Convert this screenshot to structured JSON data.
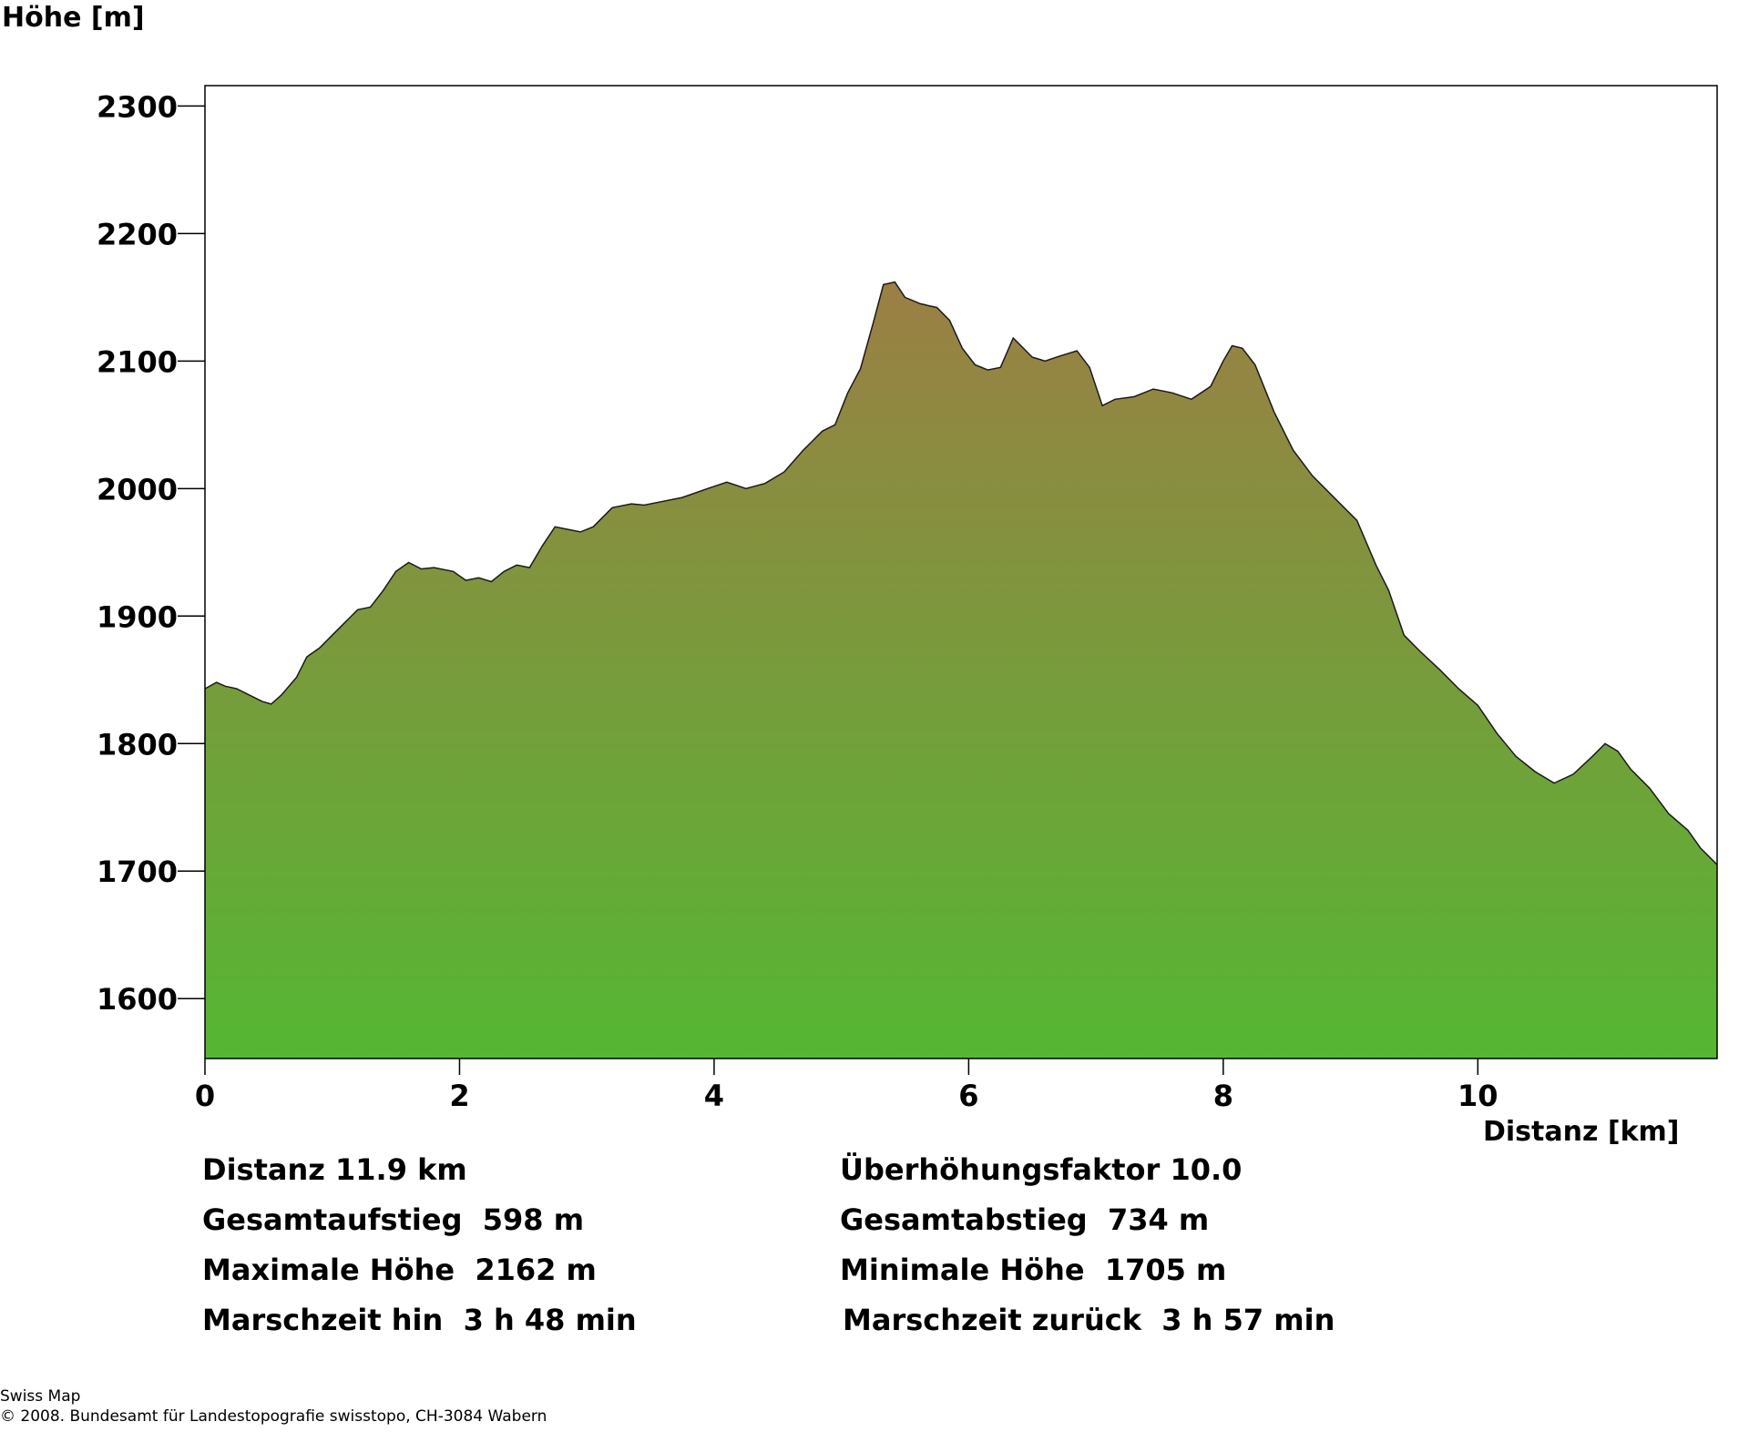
{
  "chart_data": {
    "type": "area",
    "ylabel": "Höhe [m]",
    "xlabel": "Distanz [km]",
    "xlim": [
      0,
      11.88
    ],
    "ylim": [
      1553,
      2316
    ],
    "xticks": [
      0,
      2,
      4,
      6,
      8,
      10
    ],
    "yticks": [
      1600,
      1700,
      1800,
      1900,
      2000,
      2100,
      2200,
      2300
    ],
    "grid": false,
    "colors": {
      "top": "#9b7f44",
      "bottom": "#55b733",
      "line": "#1a1a1a"
    },
    "x": [
      0,
      0.09,
      0.16,
      0.25,
      0.35,
      0.45,
      0.52,
      0.6,
      0.72,
      0.8,
      0.9,
      1.0,
      1.1,
      1.2,
      1.3,
      1.4,
      1.5,
      1.6,
      1.7,
      1.8,
      1.95,
      2.05,
      2.15,
      2.25,
      2.35,
      2.45,
      2.55,
      2.65,
      2.75,
      2.85,
      2.95,
      3.05,
      3.2,
      3.35,
      3.45,
      3.6,
      3.75,
      3.95,
      4.1,
      4.25,
      4.4,
      4.55,
      4.7,
      4.85,
      4.95,
      5.05,
      5.15,
      5.25,
      5.33,
      5.42,
      5.5,
      5.62,
      5.75,
      5.85,
      5.95,
      6.05,
      6.15,
      6.25,
      6.35,
      6.5,
      6.6,
      6.72,
      6.85,
      6.95,
      7.05,
      7.15,
      7.3,
      7.45,
      7.6,
      7.75,
      7.9,
      8.0,
      8.07,
      8.15,
      8.25,
      8.4,
      8.55,
      8.7,
      8.85,
      8.95,
      9.05,
      9.2,
      9.3,
      9.42,
      9.55,
      9.7,
      9.85,
      10.0,
      10.15,
      10.3,
      10.45,
      10.6,
      10.75,
      10.9,
      11.0,
      11.1,
      11.2,
      11.35,
      11.5,
      11.65,
      11.75,
      11.88
    ],
    "y": [
      1843,
      1848,
      1845,
      1843,
      1838,
      1833,
      1831,
      1838,
      1852,
      1868,
      1875,
      1885,
      1895,
      1905,
      1907,
      1920,
      1935,
      1942,
      1937,
      1938,
      1935,
      1928,
      1930,
      1927,
      1935,
      1940,
      1938,
      1955,
      1970,
      1968,
      1966,
      1970,
      1985,
      1988,
      1987,
      1990,
      1993,
      2000,
      2005,
      2000,
      2004,
      2013,
      2030,
      2045,
      2050,
      2075,
      2094,
      2130,
      2160,
      2162,
      2150,
      2145,
      2142,
      2132,
      2110,
      2097,
      2093,
      2095,
      2118,
      2103,
      2100,
      2104,
      2108,
      2095,
      2065,
      2070,
      2072,
      2078,
      2075,
      2070,
      2080,
      2100,
      2112,
      2110,
      2097,
      2060,
      2030,
      2010,
      1995,
      1985,
      1975,
      1940,
      1920,
      1885,
      1872,
      1858,
      1843,
      1830,
      1808,
      1790,
      1778,
      1769,
      1776,
      1790,
      1800,
      1794,
      1780,
      1765,
      1745,
      1732,
      1718,
      1705
    ]
  },
  "stats": {
    "distance": "Distanz 11.9 km",
    "exaggeration": "Überhöhungsfaktor 10.0",
    "ascent": "Gesamtaufstieg  598 m",
    "descent": "Gesamtabstieg  734 m",
    "max_height": "Maximale Höhe  2162 m",
    "min_height": "Minimale Höhe  1705 m",
    "time_out": "Marschzeit hin  3 h 48 min",
    "time_back": "Marschzeit zurück  3 h 57 min"
  },
  "credit": {
    "line1": "Swiss Map",
    "line2": "© 2008. Bundesamt für Landestopografie swisstopo, CH-3084 Wabern"
  }
}
